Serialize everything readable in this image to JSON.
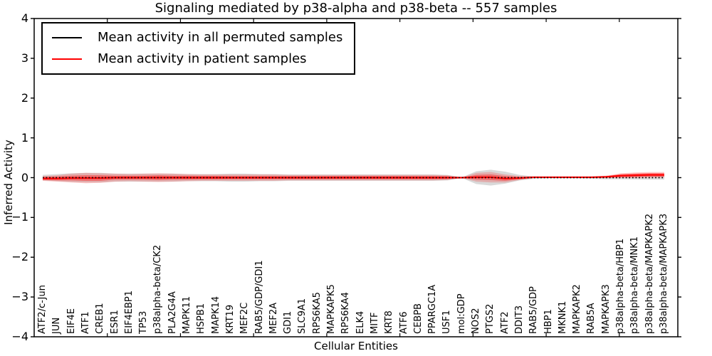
{
  "title": "Signaling mediated by p38-alpha and p38-beta -- 557 samples",
  "legend": {
    "items": [
      {
        "label": "Mean activity in all permuted samples",
        "color": "#000000"
      },
      {
        "label": "Mean activity in patient samples",
        "color": "#ff0000"
      }
    ]
  },
  "axes": {
    "y": {
      "label": "Inferred Activity",
      "ticks": [
        4,
        3,
        2,
        1,
        0,
        -1,
        -2,
        -3,
        -4
      ]
    },
    "x": {
      "label": "Cellular Entities"
    }
  },
  "colors": {
    "axis": "#000000",
    "permuted_band": "rgba(120,120,120,0.28)",
    "patient_band_outer": "rgba(255,20,20,0.22)",
    "patient_band_inner": "rgba(255,20,20,0.42)",
    "patient_line": "#ff0000",
    "permuted_line": "#000000"
  },
  "chart_data": {
    "type": "line",
    "title": "Signaling mediated by p38-alpha and p38-beta -- 557 samples",
    "xlabel": "Cellular Entities",
    "ylabel": "Inferred Activity",
    "ylim": [
      -4,
      4
    ],
    "yticks": [
      4,
      3,
      2,
      1,
      0,
      -1,
      -2,
      -3,
      -4
    ],
    "legend_position": "upper left",
    "grid": false,
    "categories": [
      "ATF2/c-Jun",
      "JUN",
      "EIF4E",
      "ATF1",
      "CREB1",
      "ESR1",
      "EIF4EBP1",
      "TP53",
      "p38alpha-beta/CK2",
      "PLA2G4A",
      "MAPK11",
      "HSPB1",
      "MAPK14",
      "KRT19",
      "MEF2C",
      "RAB5/GDP/GDI1",
      "MEF2A",
      "GDI1",
      "SLC9A1",
      "RPS6KA5",
      "MAPKAPK5",
      "RPS6KA4",
      "ELK4",
      "MITF",
      "KRT8",
      "ATF6",
      "CEBPB",
      "PPARGC1A",
      "USF1",
      "mol:GDP",
      "NOS2",
      "PTGS2",
      "ATF2",
      "DDIT3",
      "RAB5/GDP",
      "HBP1",
      "MKNK1",
      "MAPKAPK2",
      "RAB5A",
      "MAPKAPK3",
      "p38alpha-beta/HBP1",
      "p38alpha-beta/MNK1",
      "p38alpha-beta/MAPKAPK2",
      "p38alpha-beta/MAPKAPK3"
    ],
    "series": [
      {
        "name": "Mean activity in all permuted samples",
        "color": "#000000",
        "style": "dotted",
        "values": [
          0,
          0,
          0,
          0,
          0,
          0,
          0,
          0,
          0,
          0,
          0,
          0,
          0,
          0,
          0,
          0,
          0,
          0,
          0,
          0,
          0,
          0,
          0,
          0,
          0,
          0,
          0,
          0,
          0,
          0,
          0,
          0,
          0,
          0,
          0,
          0,
          0,
          0,
          0,
          0,
          0,
          0,
          0,
          0
        ]
      },
      {
        "name": "Mean activity in patient samples",
        "color": "#ff0000",
        "style": "solid",
        "values": [
          -0.02,
          -0.02,
          -0.01,
          -0.01,
          -0.01,
          0,
          0,
          0,
          0,
          0,
          0,
          0,
          0,
          0,
          0,
          0,
          0,
          0,
          0,
          0,
          0,
          0,
          0,
          0,
          0,
          0,
          0,
          0,
          0,
          0,
          0.01,
          0.01,
          -0.02,
          -0.01,
          0.01,
          0.01,
          0.01,
          0.01,
          0.01,
          0.02,
          0.05,
          0.06,
          0.07,
          0.07
        ]
      }
    ],
    "bands": [
      {
        "name": "permuted-sample-range",
        "center": "permuted-mean",
        "color": "rgba(120,120,120,0.28)",
        "half_widths": [
          0.07,
          0.09,
          0.11,
          0.12,
          0.12,
          0.1,
          0.1,
          0.1,
          0.1,
          0.1,
          0.09,
          0.09,
          0.09,
          0.1,
          0.1,
          0.09,
          0.09,
          0.08,
          0.08,
          0.08,
          0.08,
          0.08,
          0.08,
          0.08,
          0.08,
          0.08,
          0.08,
          0.08,
          0.07,
          0.01,
          0.16,
          0.2,
          0.15,
          0.07,
          0.03,
          0.02,
          0.02,
          0.02,
          0.03,
          0.04,
          0.04,
          0.045,
          0.05,
          0.05
        ]
      },
      {
        "name": "patient-sample-range-outer",
        "center": "patient-mean",
        "color": "rgba(255,20,20,0.22)",
        "half_widths": [
          0.06,
          0.08,
          0.11,
          0.13,
          0.12,
          0.1,
          0.09,
          0.1,
          0.11,
          0.1,
          0.09,
          0.08,
          0.08,
          0.08,
          0.08,
          0.08,
          0.08,
          0.07,
          0.07,
          0.07,
          0.07,
          0.07,
          0.07,
          0.07,
          0.07,
          0.07,
          0.07,
          0.07,
          0.06,
          0.006,
          0.11,
          0.13,
          0.1,
          0.05,
          0.02,
          0.015,
          0.015,
          0.015,
          0.02,
          0.03,
          0.06,
          0.07,
          0.07,
          0.07
        ]
      },
      {
        "name": "patient-sample-range-inner",
        "center": "patient-mean",
        "color": "rgba(255,20,20,0.42)",
        "half_widths": [
          0.04,
          0.05,
          0.06,
          0.07,
          0.07,
          0.05,
          0.05,
          0.05,
          0.06,
          0.05,
          0.05,
          0.045,
          0.045,
          0.04,
          0.04,
          0.04,
          0.04,
          0.04,
          0.04,
          0.04,
          0.04,
          0.04,
          0.04,
          0.04,
          0.04,
          0.04,
          0.04,
          0.04,
          0.035,
          0.004,
          0.06,
          0.07,
          0.06,
          0.03,
          0.01,
          0.01,
          0.01,
          0.01,
          0.01,
          0.015,
          0.04,
          0.045,
          0.045,
          0.045
        ]
      }
    ]
  }
}
